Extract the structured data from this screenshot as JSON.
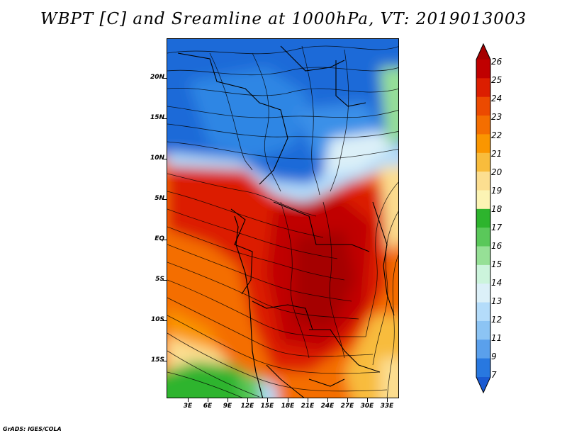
{
  "title": "WBPT [C] and Sreamline at 1000hPa, VT: 2019013003",
  "credit": "GrADS: IGES/COLA",
  "map": {
    "lat_labels": [
      "20N",
      "15N",
      "10N",
      "5N",
      "EQ",
      "5S",
      "10S",
      "15S"
    ],
    "lon_labels": [
      "3E",
      "6E",
      "9E",
      "12E",
      "15E",
      "18E",
      "21E",
      "24E",
      "27E",
      "30E",
      "33E"
    ]
  },
  "colorbar": {
    "labels": [
      "26",
      "25",
      "24",
      "23",
      "22",
      "21",
      "20",
      "19",
      "18",
      "17",
      "16",
      "15",
      "14",
      "13",
      "12",
      "11",
      "9",
      "7"
    ],
    "colors": [
      "#a50000",
      "#c00000",
      "#dc1e00",
      "#ec4a00",
      "#f46e00",
      "#fa9600",
      "#f8bc3c",
      "#fcde90",
      "#fcf4b4",
      "#2db42d",
      "#5ac85a",
      "#96e096",
      "#ccf4dc",
      "#dcf0f8",
      "#b4dcfa",
      "#8cc4f4",
      "#5aa0ec",
      "#2878e0",
      "#1a5ad2"
    ]
  }
}
